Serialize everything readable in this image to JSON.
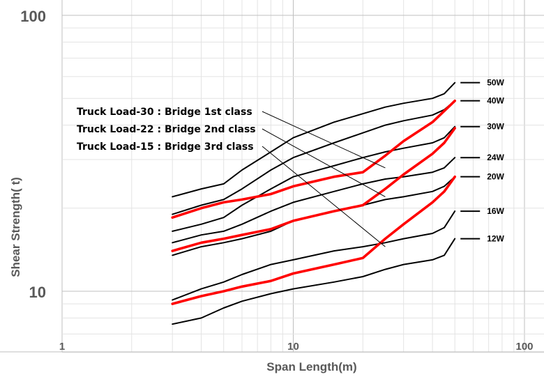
{
  "chart_data": {
    "type": "line",
    "title": "",
    "xlabel": "Span Length(m)",
    "ylabel": "Shear Strength( t)",
    "xscale": "log",
    "yscale": "log",
    "xlim": [
      1,
      100
    ],
    "ylim": [
      6,
      100
    ],
    "x_ticks": [
      "1",
      "10",
      "100"
    ],
    "y_ticks": [
      "10",
      "100"
    ],
    "grid": "log minor and major gridlines",
    "x": [
      3,
      4,
      5,
      6,
      8,
      10,
      15,
      20,
      25,
      30,
      40,
      45,
      50
    ],
    "series": [
      {
        "name": "50W",
        "color": "#000000",
        "values": [
          22.0,
          23.5,
          24.5,
          27.5,
          32.0,
          36.0,
          41.0,
          44.0,
          46.5,
          48.0,
          50.0,
          52.0,
          57.0
        ]
      },
      {
        "name": "40W",
        "color": "#000000",
        "values": [
          19.0,
          20.5,
          21.5,
          23.5,
          27.5,
          30.5,
          34.5,
          37.5,
          40.0,
          41.5,
          43.5,
          45.5,
          49.0
        ]
      },
      {
        "name": "30W",
        "color": "#000000",
        "values": [
          16.5,
          17.5,
          18.5,
          20.5,
          23.5,
          26.0,
          28.5,
          30.5,
          32.0,
          33.0,
          34.5,
          36.0,
          39.5
        ]
      },
      {
        "name": "24W",
        "color": "#000000",
        "values": [
          15.0,
          16.0,
          16.5,
          17.5,
          19.5,
          21.0,
          23.0,
          24.5,
          25.5,
          26.0,
          27.0,
          28.0,
          30.5
        ]
      },
      {
        "name": "20W",
        "color": "#000000",
        "values": [
          13.5,
          14.5,
          15.0,
          15.5,
          16.5,
          18.0,
          19.5,
          20.5,
          21.5,
          22.0,
          23.0,
          24.0,
          26.0
        ]
      },
      {
        "name": "16W",
        "color": "#000000",
        "values": [
          9.3,
          10.2,
          10.8,
          11.5,
          12.5,
          13.0,
          14.0,
          14.5,
          15.0,
          15.5,
          16.2,
          17.0,
          19.5
        ]
      },
      {
        "name": "12W",
        "color": "#000000",
        "values": [
          7.6,
          8.0,
          8.7,
          9.2,
          9.8,
          10.2,
          10.8,
          11.3,
          12.0,
          12.5,
          13.0,
          13.5,
          15.5
        ]
      },
      {
        "name": "Truck Load-30 : Bridge 1st class",
        "color": "#ff0000",
        "values": [
          18.5,
          20.0,
          21.0,
          21.5,
          22.5,
          24.0,
          26.0,
          27.0,
          31.0,
          35.0,
          41.0,
          45.0,
          49.0
        ]
      },
      {
        "name": "Truck Load-22 : Bridge 2nd class",
        "color": "#ff0000",
        "values": [
          14.0,
          15.0,
          15.5,
          16.0,
          16.8,
          18.0,
          19.5,
          20.5,
          23.5,
          26.5,
          31.5,
          34.5,
          39.0
        ]
      },
      {
        "name": "Truck Load-15 : Bridge 3rd class",
        "color": "#ff0000",
        "values": [
          9.0,
          9.6,
          10.0,
          10.4,
          10.9,
          11.6,
          12.5,
          13.2,
          15.5,
          17.5,
          21.0,
          23.0,
          26.0
        ]
      }
    ],
    "curve_labels": [
      "50W",
      "40W",
      "30W",
      "24W",
      "20W",
      "16W",
      "12W"
    ],
    "legend_entries": [
      {
        "text": "Truck Load-30 : Bridge 1st class",
        "points_to": [
          25,
          28
        ]
      },
      {
        "text": "Truck Load-22 : Bridge 2nd class",
        "points_to": [
          25,
          22
        ]
      },
      {
        "text": "Truck Load-15 : Bridge 3rd class",
        "points_to": [
          25,
          14.5
        ]
      }
    ]
  }
}
